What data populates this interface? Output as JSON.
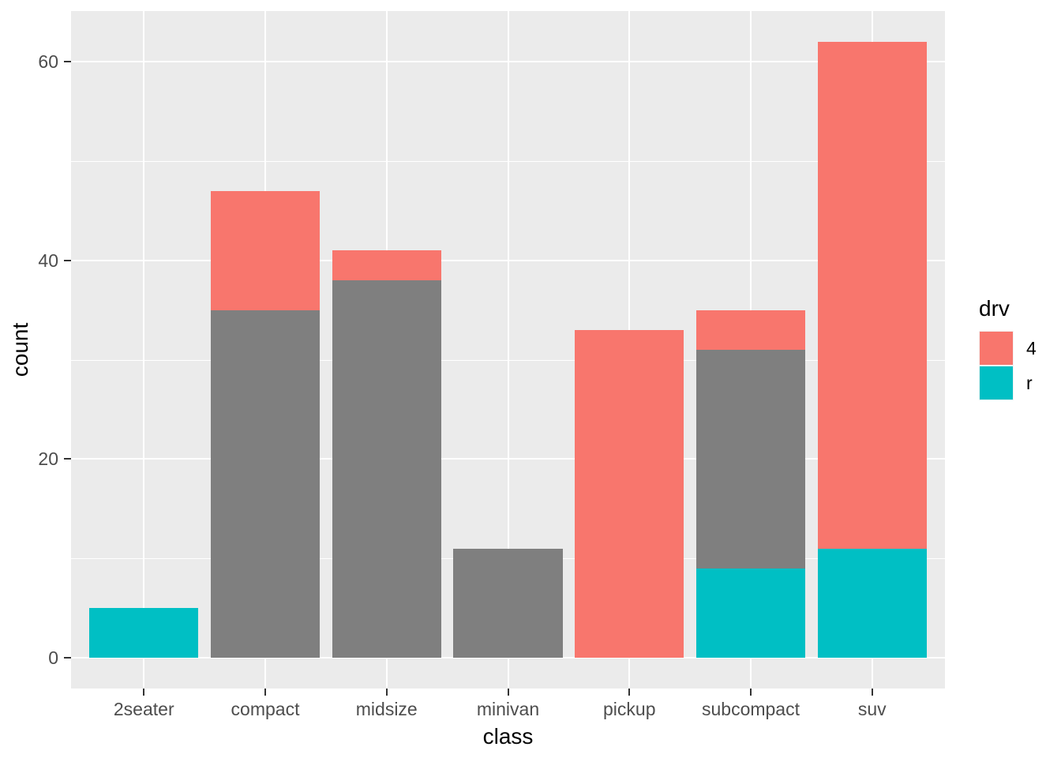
{
  "chart_data": {
    "type": "bar",
    "stacked": true,
    "title": "",
    "xlabel": "class",
    "ylabel": "count",
    "categories": [
      "2seater",
      "compact",
      "midsize",
      "minivan",
      "pickup",
      "subcompact",
      "suv"
    ],
    "series": [
      {
        "name": "r",
        "color": "#00BFC4",
        "in_legend": true,
        "values": [
          5,
          0,
          0,
          0,
          0,
          9,
          11
        ]
      },
      {
        "name": "",
        "color": "#7F7F7F",
        "in_legend": false,
        "values": [
          0,
          35,
          38,
          11,
          0,
          22,
          0
        ]
      },
      {
        "name": "4",
        "color": "#F8766D",
        "in_legend": true,
        "values": [
          0,
          12,
          3,
          0,
          33,
          4,
          51
        ]
      }
    ],
    "stack_totals": [
      5,
      47,
      41,
      11,
      33,
      35,
      62
    ],
    "y_axis": {
      "ticks": [
        0,
        20,
        40,
        60
      ],
      "minor_ticks": [
        10,
        30,
        50
      ],
      "limits": [
        -3.1,
        65.1
      ]
    },
    "legend": {
      "title": "drv",
      "position": "right",
      "entries": [
        {
          "label": "4",
          "color": "#F8766D"
        },
        {
          "label": "r",
          "color": "#00BFC4"
        }
      ]
    },
    "style": {
      "panel_bg": "#EBEBEB",
      "grid_color": "#FFFFFF",
      "tick_color": "#333333",
      "tick_label_color": "#4D4D4D",
      "title_color": "#000000",
      "bar_width_fraction": 0.9
    }
  }
}
